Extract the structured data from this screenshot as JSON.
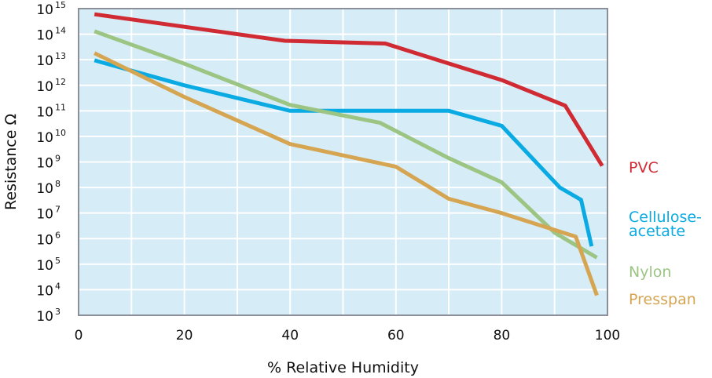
{
  "chart_data": {
    "type": "line",
    "title": "",
    "xlabel": "% Relative Humidity",
    "ylabel": "Resistance Ω",
    "xlim": [
      0,
      100
    ],
    "ylim_log10": [
      3,
      15
    ],
    "y_scale": "log",
    "grid": true,
    "background_color": "#d6ecf7",
    "frame_color": "#8a8f99",
    "x_ticks": [
      "0",
      "20",
      "40",
      "60",
      "80",
      "100"
    ],
    "y_ticks": [
      {
        "base": "10",
        "exp": "3"
      },
      {
        "base": "10",
        "exp": "4"
      },
      {
        "base": "10",
        "exp": "5"
      },
      {
        "base": "10",
        "exp": "6"
      },
      {
        "base": "10",
        "exp": "7"
      },
      {
        "base": "10",
        "exp": "8"
      },
      {
        "base": "10",
        "exp": "9"
      },
      {
        "base": "10",
        "exp": "10"
      },
      {
        "base": "10",
        "exp": "11"
      },
      {
        "base": "10",
        "exp": "12"
      },
      {
        "base": "10",
        "exp": "13"
      },
      {
        "base": "10",
        "exp": "14"
      },
      {
        "base": "10",
        "exp": "15"
      }
    ],
    "legend_placement": "right",
    "series": [
      {
        "name": "PVC",
        "label_lines": [
          "PVC"
        ],
        "color": "#d02a33",
        "points": [
          {
            "x": 3,
            "y": 600000000000000.0
          },
          {
            "x": 39,
            "y": 55000000000000.0
          },
          {
            "x": 58,
            "y": 43000000000000.0
          },
          {
            "x": 80,
            "y": 1600000000000.0
          },
          {
            "x": 92,
            "y": 160000000000.0
          },
          {
            "x": 99,
            "y": 700000000.0
          }
        ]
      },
      {
        "name": "Cellulose-acetate",
        "label_lines": [
          "Cellulose-",
          "acetate"
        ],
        "color": "#0aaae3",
        "points": [
          {
            "x": 3,
            "y": 9500000000000.0
          },
          {
            "x": 20,
            "y": 1000000000000.0
          },
          {
            "x": 40,
            "y": 100000000000.0
          },
          {
            "x": 70,
            "y": 100000000000.0
          },
          {
            "x": 80,
            "y": 26000000000.0
          },
          {
            "x": 91,
            "y": 100000000.0
          },
          {
            "x": 95,
            "y": 33000000.0
          },
          {
            "x": 97,
            "y": 500000.0
          }
        ]
      },
      {
        "name": "Nylon",
        "label_lines": [
          "Nylon"
        ],
        "color": "#9cc584",
        "points": [
          {
            "x": 3,
            "y": 130000000000000.0
          },
          {
            "x": 20,
            "y": 7000000000000.0
          },
          {
            "x": 40,
            "y": 170000000000.0
          },
          {
            "x": 57,
            "y": 34000000000.0
          },
          {
            "x": 70,
            "y": 1400000000.0
          },
          {
            "x": 80,
            "y": 160000000.0
          },
          {
            "x": 90,
            "y": 1700000.0
          },
          {
            "x": 98,
            "y": 180000.0
          }
        ]
      },
      {
        "name": "Presspan",
        "label_lines": [
          "Presspan"
        ],
        "color": "#d6a552",
        "points": [
          {
            "x": 3,
            "y": 18000000000000.0
          },
          {
            "x": 20,
            "y": 350000000000.0
          },
          {
            "x": 40,
            "y": 5000000000.0
          },
          {
            "x": 60,
            "y": 650000000.0
          },
          {
            "x": 70,
            "y": 36000000.0
          },
          {
            "x": 80,
            "y": 10000000.0
          },
          {
            "x": 94,
            "y": 1200000.0
          },
          {
            "x": 98,
            "y": 6000.0
          }
        ]
      }
    ]
  }
}
